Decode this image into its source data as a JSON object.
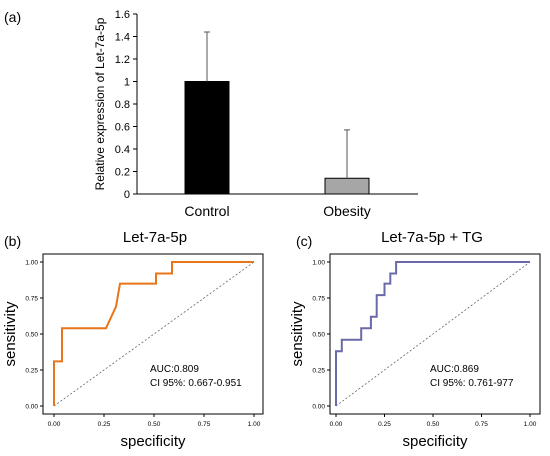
{
  "panels": {
    "a": "(a)",
    "b": "(b)",
    "c": "(c)"
  },
  "chart_data": [
    {
      "type": "bar",
      "title": "",
      "ylabel": "Relative expression of Let-7a-5p",
      "categories": [
        "Control",
        "Obesity"
      ],
      "values": [
        1.0,
        0.14
      ],
      "error_upper": [
        0.44,
        0.43
      ],
      "bar_colors": [
        "#000000",
        "#a6a6a6"
      ],
      "ylim": [
        0,
        1.6
      ],
      "yticks": [
        "0",
        "0.2",
        "0.4",
        "0.6",
        "0.8",
        "1",
        "1.2",
        "1.4",
        "1.6"
      ]
    },
    {
      "type": "line",
      "title": "Let-7a-5p",
      "xlabel": "specificity",
      "ylabel": "sensitivity",
      "xlim": [
        0,
        1
      ],
      "ylim": [
        0,
        1
      ],
      "xticks": [
        "0.00",
        "0.25",
        "0.50",
        "0.75",
        "1.00"
      ],
      "yticks": [
        "0.00",
        "0.25",
        "0.50",
        "0.75",
        "1.00"
      ],
      "color": "#e8751a",
      "curve": [
        [
          0,
          0
        ],
        [
          0,
          0.31
        ],
        [
          0.04,
          0.31
        ],
        [
          0.04,
          0.54
        ],
        [
          0.26,
          0.54
        ],
        [
          0.31,
          0.69
        ],
        [
          0.33,
          0.85
        ],
        [
          0.51,
          0.85
        ],
        [
          0.51,
          0.92
        ],
        [
          0.59,
          0.92
        ],
        [
          0.59,
          1.0
        ],
        [
          1.0,
          1.0
        ]
      ],
      "annotations": [
        "AUC:0.809",
        "CI 95%: 0.667-0.951"
      ]
    },
    {
      "type": "line",
      "title": "Let-7a-5p + TG",
      "xlabel": "specificity",
      "ylabel": "sensitivity",
      "xlim": [
        0,
        1
      ],
      "ylim": [
        0,
        1
      ],
      "xticks": [
        "0.00",
        "0.25",
        "0.50",
        "0.75",
        "1.00"
      ],
      "yticks": [
        "0.00",
        "0.25",
        "0.50",
        "0.75",
        "1.00"
      ],
      "color": "#6a6aa8",
      "curve": [
        [
          0,
          0
        ],
        [
          0,
          0.38
        ],
        [
          0.03,
          0.38
        ],
        [
          0.03,
          0.46
        ],
        [
          0.13,
          0.46
        ],
        [
          0.13,
          0.54
        ],
        [
          0.18,
          0.54
        ],
        [
          0.18,
          0.62
        ],
        [
          0.21,
          0.62
        ],
        [
          0.21,
          0.77
        ],
        [
          0.25,
          0.77
        ],
        [
          0.25,
          0.85
        ],
        [
          0.28,
          0.85
        ],
        [
          0.28,
          0.92
        ],
        [
          0.31,
          0.92
        ],
        [
          0.31,
          1.0
        ],
        [
          1.0,
          1.0
        ]
      ],
      "annotations": [
        "AUC:0.869",
        "CI 95%: 0.761-977"
      ]
    }
  ]
}
